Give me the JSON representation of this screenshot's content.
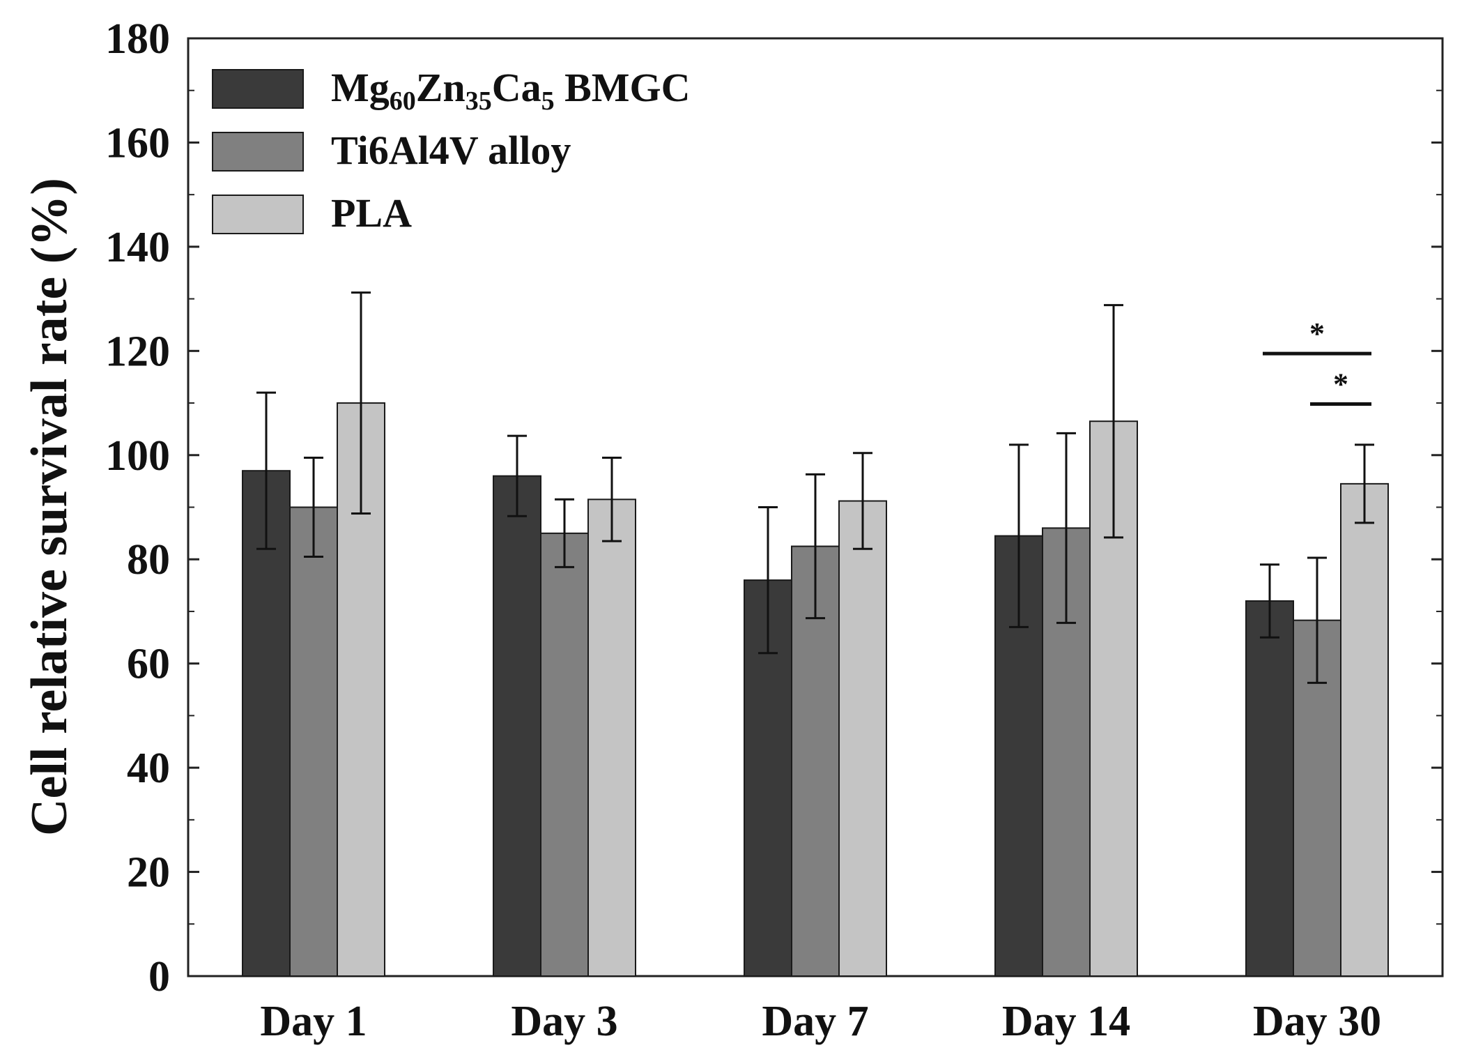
{
  "chart_data": {
    "type": "bar",
    "title": "",
    "xlabel": "",
    "ylabel": "Cell relative survival rate (%)",
    "ylim": [
      0,
      180
    ],
    "yticks": [
      0,
      20,
      40,
      60,
      80,
      100,
      120,
      140,
      160,
      180
    ],
    "categories": [
      "Day 1",
      "Day 3",
      "Day 7",
      "Day 14",
      "Day 30"
    ],
    "legend_position": "top-left",
    "grid": false,
    "series": [
      {
        "name": "Mg60Zn35Ca5 BMGC",
        "name_parts": [
          [
            "Mg",
            "normal"
          ],
          [
            "60",
            "sub"
          ],
          [
            "Zn",
            "normal"
          ],
          [
            "35",
            "sub"
          ],
          [
            "Ca",
            "normal"
          ],
          [
            "5",
            "sub"
          ],
          [
            " BMGC",
            "normal"
          ]
        ],
        "color": "#3a3a3a",
        "values": [
          97,
          96,
          76,
          84.5,
          72
        ],
        "errors": [
          15,
          7.7,
          14,
          17.5,
          7
        ]
      },
      {
        "name": "Ti6Al4V alloy",
        "color": "#808080",
        "values": [
          90,
          85,
          82.5,
          86,
          68.3
        ],
        "errors": [
          9.5,
          6.5,
          13.8,
          18.2,
          12
        ]
      },
      {
        "name": "PLA",
        "color": "#c4c4c4",
        "values": [
          110,
          91.5,
          91.2,
          106.5,
          94.5
        ],
        "errors": [
          21.2,
          8,
          9.2,
          22.3,
          7.5
        ]
      }
    ],
    "significance": [
      {
        "category": "Day 30",
        "from_series": 0,
        "to_series": 2,
        "y": 119.5,
        "label": "*"
      },
      {
        "category": "Day 30",
        "from_series": 1,
        "to_series": 2,
        "y": 109.8,
        "label": "*"
      }
    ]
  }
}
